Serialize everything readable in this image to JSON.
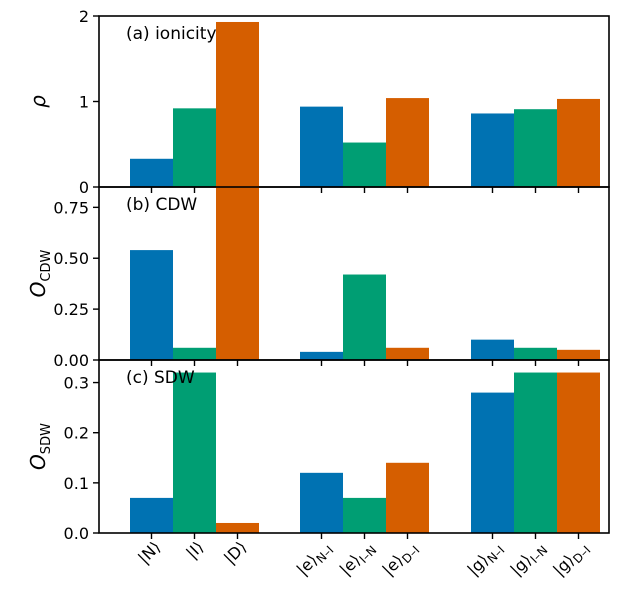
{
  "colors": {
    "N": "#0072b2",
    "I": "#009e73",
    "D": "#d55e00"
  },
  "chart_data": {
    "type": "bar",
    "categories": [
      "|N⟩",
      "|I⟩",
      "|D⟩",
      "|e⟩N–I",
      "|e⟩I–N",
      "|e⟩D–I",
      "|g⟩N–I",
      "|g⟩I–N",
      "|g⟩D–I"
    ],
    "category_labels": [
      {
        "main": "|N⟩",
        "sub": ""
      },
      {
        "main": "|I⟩",
        "sub": ""
      },
      {
        "main": "|D⟩",
        "sub": ""
      },
      {
        "main": "|e⟩",
        "sub": "N–I"
      },
      {
        "main": "|e⟩",
        "sub": "I–N"
      },
      {
        "main": "|e⟩",
        "sub": "D–I"
      },
      {
        "main": "|g⟩",
        "sub": "N–I"
      },
      {
        "main": "|g⟩",
        "sub": "I–N"
      },
      {
        "main": "|g⟩",
        "sub": "D–I"
      }
    ],
    "bar_colors": [
      "N",
      "I",
      "D",
      "N",
      "I",
      "D",
      "N",
      "I",
      "D"
    ],
    "panels": [
      {
        "id": "ionicity",
        "label": "(a) ionicity",
        "ylabel": "ρ",
        "ylabel_sub": "",
        "ylim": [
          0,
          2
        ],
        "yticks": [
          0,
          1,
          2
        ],
        "ytick_labels": [
          "0",
          "1",
          "2"
        ],
        "values": [
          0.33,
          0.92,
          1.93,
          0.94,
          0.52,
          1.04,
          0.86,
          0.91,
          1.03
        ]
      },
      {
        "id": "cdw",
        "label": "(b) CDW",
        "ylabel": "O",
        "ylabel_sub": "CDW",
        "ylim": [
          0,
          0.85
        ],
        "yticks": [
          0,
          0.25,
          0.5,
          0.75
        ],
        "ytick_labels": [
          "0.00",
          "0.25",
          "0.50",
          "0.75"
        ],
        "values": [
          0.54,
          0.06,
          0.91,
          0.04,
          0.42,
          0.06,
          0.1,
          0.06,
          0.05
        ]
      },
      {
        "id": "sdw",
        "label": "(c) SDW",
        "ylabel": "O",
        "ylabel_sub": "SDW",
        "ylim": [
          0,
          0.345
        ],
        "yticks": [
          0,
          0.1,
          0.2,
          0.3
        ],
        "ytick_labels": [
          "0.0",
          "0.1",
          "0.2",
          "0.3"
        ],
        "values": [
          0.07,
          0.32,
          0.02,
          0.12,
          0.07,
          0.14,
          0.28,
          0.32,
          0.32
        ]
      }
    ]
  }
}
